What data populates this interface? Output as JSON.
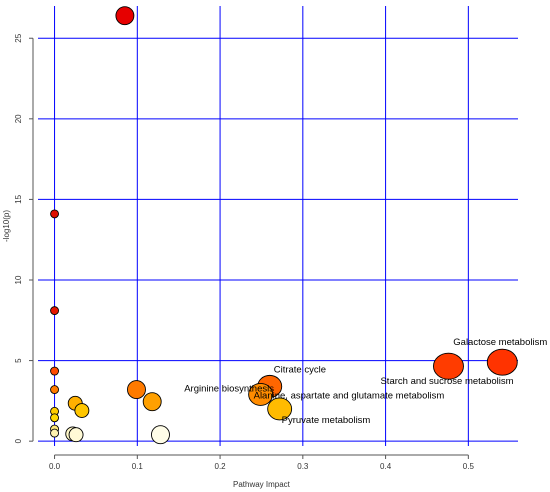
{
  "chart_data": {
    "type": "scatter",
    "xlabel": "Pathway Impact",
    "ylabel": "-log10(p)",
    "xlim": [
      -0.02,
      0.56
    ],
    "ylim": [
      -0.3,
      27.0
    ],
    "x_ticks": [
      0.0,
      0.1,
      0.2,
      0.3,
      0.4,
      0.5
    ],
    "x_tick_labels": [
      "0.0",
      "0.1",
      "0.2",
      "0.3",
      "0.4",
      "0.5"
    ],
    "y_ticks": [
      0,
      5,
      10,
      15,
      20,
      25
    ],
    "y_tick_labels": [
      "0",
      "5",
      "10",
      "15",
      "20",
      "25"
    ],
    "grid": true,
    "grid_color": "#0000ff",
    "points": [
      {
        "x": 0.085,
        "y": 26.4,
        "size": "medium",
        "color": "#e60000",
        "label": ""
      },
      {
        "x": 0.0,
        "y": 14.1,
        "size": "small",
        "color": "#e01000",
        "label": ""
      },
      {
        "x": 0.0,
        "y": 8.1,
        "size": "small",
        "color": "#e41600",
        "label": ""
      },
      {
        "x": 0.0,
        "y": 4.35,
        "size": "small",
        "color": "#ff4a00",
        "label": ""
      },
      {
        "x": 0.0,
        "y": 3.2,
        "size": "small",
        "color": "#ff7a00",
        "label": ""
      },
      {
        "x": 0.0,
        "y": 1.85,
        "size": "small",
        "color": "#ffcc00",
        "label": ""
      },
      {
        "x": 0.0,
        "y": 1.45,
        "size": "small",
        "color": "#ffd800",
        "label": ""
      },
      {
        "x": 0.0,
        "y": 0.75,
        "size": "small",
        "color": "#ffe97a",
        "label": ""
      },
      {
        "x": 0.0,
        "y": 0.5,
        "size": "small",
        "color": "#fff3b0",
        "label": ""
      },
      {
        "x": 0.025,
        "y": 2.35,
        "size": "small-medium",
        "color": "#ffb000",
        "label": ""
      },
      {
        "x": 0.033,
        "y": 1.9,
        "size": "small-medium",
        "color": "#ffc600",
        "label": ""
      },
      {
        "x": 0.022,
        "y": 0.45,
        "size": "small-medium",
        "color": "#fff8c8",
        "label": ""
      },
      {
        "x": 0.026,
        "y": 0.4,
        "size": "small-medium",
        "color": "#fffad6",
        "label": ""
      },
      {
        "x": 0.099,
        "y": 3.2,
        "size": "medium",
        "color": "#ff7a00",
        "label": ""
      },
      {
        "x": 0.118,
        "y": 2.45,
        "size": "medium",
        "color": "#ffa000",
        "label": "Arginine biosynthesis"
      },
      {
        "x": 0.128,
        "y": 0.4,
        "size": "medium",
        "color": "#fffde8",
        "label": ""
      },
      {
        "x": 0.26,
        "y": 3.4,
        "size": "medium-large",
        "color": "#ff6600",
        "label": "Citrate cycle"
      },
      {
        "x": 0.249,
        "y": 2.9,
        "size": "medium-large",
        "color": "#ff8c00",
        "label": "Alanine, aspartate and glutamate metabolism"
      },
      {
        "x": 0.272,
        "y": 2.0,
        "size": "medium-large",
        "color": "#ffbb00",
        "label": "Pyruvate metabolism"
      },
      {
        "x": 0.476,
        "y": 4.65,
        "size": "large",
        "color": "#ff3c00",
        "label": "Starch and sucrose metabolism"
      },
      {
        "x": 0.541,
        "y": 4.9,
        "size": "large",
        "color": "#ff3300",
        "label": "Galactose metabolism"
      }
    ]
  }
}
